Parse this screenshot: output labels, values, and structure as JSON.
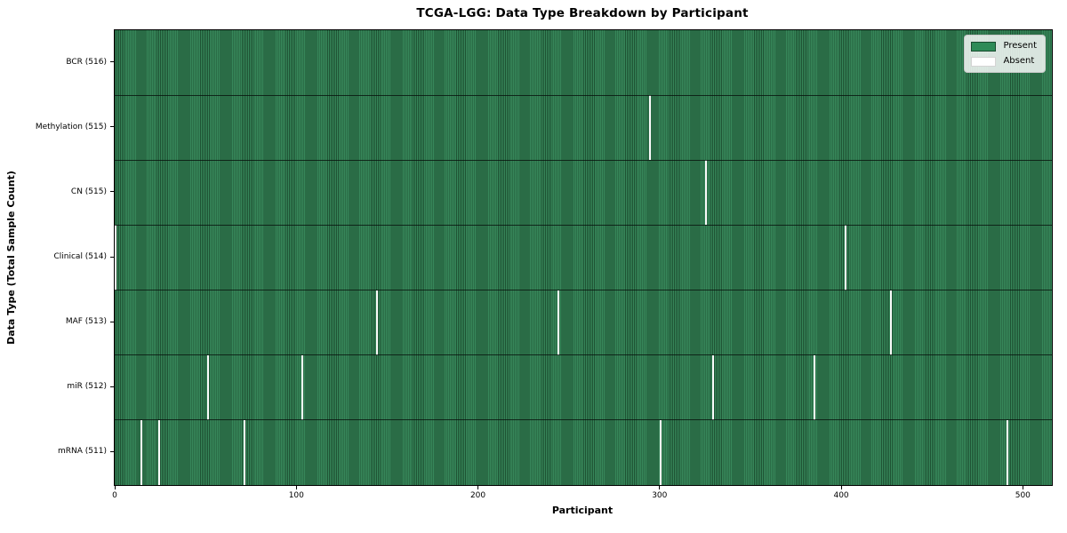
{
  "title": "TCGA-LGG: Data Type Breakdown by Participant",
  "x_axis": {
    "label": "Participant",
    "ticks": [
      "0",
      "100",
      "200",
      "300",
      "400",
      "500"
    ]
  },
  "y_axis": {
    "label": "Data Type (Total Sample Count)"
  },
  "legend": {
    "items": [
      {
        "label": "Present",
        "color": "#2e8b57"
      },
      {
        "label": "Absent",
        "color": "#ffffff"
      }
    ]
  },
  "colors": {
    "present_fill": "#37875a",
    "present_edge": "#1e5233",
    "legend_present": "#2e8b57",
    "absent": "#fafafa",
    "divider": "#0a120c"
  },
  "chart_data": {
    "type": "heatmap",
    "title": "TCGA-LGG: Data Type Breakdown by Participant",
    "xlabel": "Participant",
    "ylabel": "Data Type (Total Sample Count)",
    "legend_entries": [
      "Present",
      "Absent"
    ],
    "legend_position": "upper right",
    "total_participants": 516,
    "x_ticks": [
      0,
      100,
      200,
      300,
      400,
      500
    ],
    "x_range": [
      -0.5,
      515.5
    ],
    "grid": false,
    "rows": [
      {
        "label": "BCR (516)",
        "data_type": "BCR",
        "present_count": 516,
        "absent_participants": []
      },
      {
        "label": "Methylation (515)",
        "data_type": "Methylation",
        "present_count": 515,
        "absent_participants": [
          294
        ]
      },
      {
        "label": "CN (515)",
        "data_type": "CN",
        "present_count": 515,
        "absent_participants": [
          325
        ]
      },
      {
        "label": "Clinical (514)",
        "data_type": "Clinical",
        "present_count": 514,
        "absent_participants": [
          0,
          402
        ]
      },
      {
        "label": "MAF (513)",
        "data_type": "MAF",
        "present_count": 513,
        "absent_participants": [
          144,
          244,
          427
        ]
      },
      {
        "label": "miR (512)",
        "data_type": "miR",
        "present_count": 512,
        "absent_participants": [
          51,
          103,
          329,
          385
        ]
      },
      {
        "label": "mRNA (511)",
        "data_type": "mRNA",
        "present_count": 511,
        "absent_participants": [
          14,
          24,
          71,
          300,
          491
        ]
      }
    ]
  }
}
